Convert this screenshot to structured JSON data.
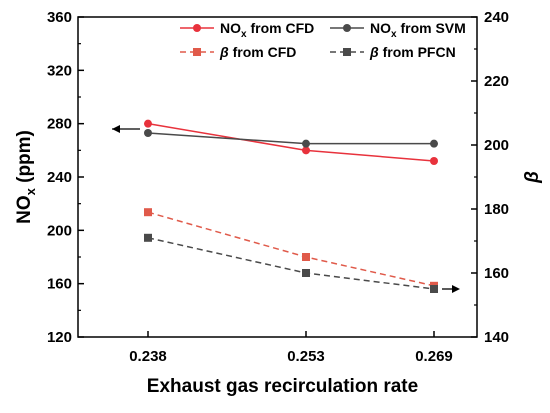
{
  "chart_data": {
    "type": "line",
    "title": "",
    "xlabel": "Exhaust gas recirculation rate",
    "ylabel_left": {
      "main": "NO",
      "sub": "x",
      "tail": " (ppm)"
    },
    "ylabel_right": "β",
    "categories": [
      "0.238",
      "0.253",
      "0.269"
    ],
    "y_left_lim": [
      120,
      360
    ],
    "y_left_ticks": [
      "120",
      "160",
      "200",
      "240",
      "280",
      "320",
      "360"
    ],
    "y_right_lim": [
      140,
      240
    ],
    "y_right_ticks": [
      "140",
      "160",
      "180",
      "200",
      "220",
      "240"
    ],
    "grid": false,
    "legend_position": "top-right",
    "series": [
      {
        "name": "NOx from CFD",
        "label_main": "NO",
        "label_sub": "x",
        "label_tail": " from CFD",
        "axis": "left",
        "values": [
          280,
          260,
          252
        ],
        "color": "#e8323c",
        "dash": false,
        "marker": "circle"
      },
      {
        "name": "NOx from SVM",
        "label_main": "NO",
        "label_sub": "x",
        "label_tail": " from SVM",
        "axis": "left",
        "values": [
          273,
          265,
          265
        ],
        "color": "#4a4a4a",
        "dash": false,
        "marker": "circle"
      },
      {
        "name": "β from CFD",
        "label_main": "β",
        "label_sub": "",
        "label_tail": " from CFD",
        "axis": "right",
        "values": [
          179,
          165,
          156
        ],
        "color": "#e05a4a",
        "dash": true,
        "marker": "square"
      },
      {
        "name": "β from PFCN",
        "label_main": "β",
        "label_sub": "",
        "label_tail": " from PFCN",
        "axis": "right",
        "values": [
          171,
          160,
          155
        ],
        "color": "#4a4a4a",
        "dash": true,
        "marker": "square"
      }
    ]
  }
}
